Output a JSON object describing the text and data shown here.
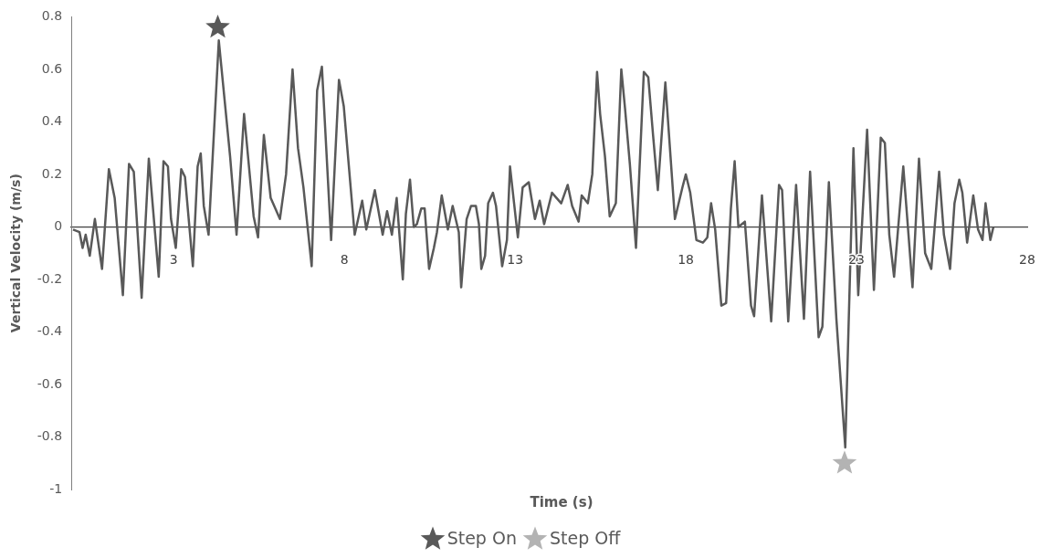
{
  "chart_data": {
    "type": "line",
    "xlabel": "Time (s)",
    "ylabel": "Vertical Velocity (m/s)",
    "xlim": [
      0,
      28
    ],
    "xticks": [
      3,
      8,
      13,
      18,
      23,
      28
    ],
    "ylim": [
      -1,
      0.8
    ],
    "yticks": [
      0.8,
      0.6,
      0.4,
      0.2,
      0,
      -0.2,
      -0.4,
      -0.6,
      -0.8,
      -1
    ],
    "grid": false,
    "legend": "bottom",
    "series": [
      {
        "color": "#595959",
        "x": [
          0.05,
          0.24,
          0.33,
          0.42,
          0.54,
          0.69,
          0.9,
          1.1,
          1.27,
          1.51,
          1.69,
          1.83,
          2.06,
          2.27,
          2.56,
          2.7,
          2.83,
          2.92,
          3.06,
          3.22,
          3.33,
          3.56,
          3.7,
          3.79,
          3.88,
          4.02,
          4.32,
          4.65,
          4.84,
          5.06,
          5.34,
          5.47,
          5.64,
          5.84,
          6.11,
          6.29,
          6.48,
          6.64,
          6.8,
          7.04,
          7.2,
          7.34,
          7.61,
          7.84,
          7.98,
          8.3,
          8.52,
          8.64,
          8.89,
          9.12,
          9.25,
          9.39,
          9.53,
          9.71,
          9.8,
          9.92,
          10.03,
          10.12,
          10.25,
          10.35,
          10.48,
          10.62,
          10.71,
          10.85,
          11.03,
          11.17,
          11.35,
          11.42,
          11.58,
          11.71,
          11.85,
          11.94,
          12.01,
          12.12,
          12.21,
          12.35,
          12.44,
          12.62,
          12.76,
          12.85,
          13.08,
          13.22,
          13.4,
          13.58,
          13.72,
          13.85,
          14.08,
          14.35,
          14.54,
          14.67,
          14.86,
          14.95,
          15.13,
          15.26,
          15.4,
          15.49,
          15.63,
          15.77,
          15.95,
          16.11,
          16.22,
          16.36,
          16.54,
          16.77,
          16.9,
          17.04,
          17.18,
          17.4,
          17.68,
          17.9,
          18,
          18.13,
          18.31,
          18.5,
          18.63,
          18.74,
          18.86,
          19.04,
          19.18,
          19.32,
          19.43,
          19.54,
          19.73,
          19.91,
          20,
          20.23,
          20.5,
          20.73,
          20.82,
          21,
          21.23,
          21.46,
          21.64,
          21.89,
          22,
          22.19,
          22.41,
          22.67,
          22.91,
          23.05,
          23.31,
          23.51,
          23.71,
          23.83,
          23.96,
          24.1,
          24.37,
          24.64,
          24.83,
          25.01,
          25.19,
          25.42,
          25.56,
          25.74,
          25.87,
          26.01,
          26.1,
          26.24,
          26.42,
          26.56,
          26.69,
          26.78,
          26.92,
          27.01
        ],
        "values": [
          -0.01,
          -0.02,
          -0.08,
          -0.03,
          -0.11,
          0.03,
          -0.16,
          0.22,
          0.11,
          -0.26,
          0.24,
          0.21,
          -0.27,
          0.26,
          -0.19,
          0.25,
          0.23,
          0.03,
          -0.08,
          0.22,
          0.19,
          -0.15,
          0.23,
          0.28,
          0.08,
          -0.03,
          0.71,
          0.27,
          -0.03,
          0.43,
          0.04,
          -0.04,
          0.35,
          0.11,
          0.03,
          0.2,
          0.6,
          0.3,
          0.15,
          -0.15,
          0.52,
          0.61,
          -0.05,
          0.56,
          0.46,
          -0.03,
          0.1,
          -0.01,
          0.14,
          -0.03,
          0.06,
          -0.03,
          0.11,
          -0.2,
          0.05,
          0.18,
          0,
          0.01,
          0.07,
          0.07,
          -0.16,
          -0.08,
          -0.02,
          0.12,
          -0.01,
          0.08,
          -0.02,
          -0.23,
          0.03,
          0.08,
          0.08,
          0.01,
          -0.16,
          -0.11,
          0.09,
          0.13,
          0.08,
          -0.15,
          -0.05,
          0.23,
          -0.04,
          0.15,
          0.17,
          0.03,
          0.1,
          0.01,
          0.13,
          0.09,
          0.16,
          0.08,
          0.02,
          0.12,
          0.09,
          0.2,
          0.59,
          0.43,
          0.27,
          0.04,
          0.09,
          0.6,
          0.45,
          0.24,
          -0.08,
          0.59,
          0.57,
          0.35,
          0.14,
          0.55,
          0.03,
          0.15,
          0.2,
          0.13,
          -0.05,
          -0.06,
          -0.04,
          0.09,
          -0.01,
          -0.3,
          -0.29,
          0.07,
          0.25,
          0,
          0.02,
          -0.3,
          -0.34,
          0.12,
          -0.36,
          0.16,
          0.14,
          -0.36,
          0.16,
          -0.35,
          0.21,
          -0.42,
          -0.38,
          0.17,
          -0.35,
          -0.84,
          0.3,
          -0.26,
          0.37,
          -0.24,
          0.34,
          0.32,
          -0.03,
          -0.19,
          0.23,
          -0.23,
          0.26,
          -0.1,
          -0.16,
          0.21,
          -0.03,
          -0.16,
          0.09,
          0.18,
          0.13,
          -0.06,
          0.12,
          -0.01,
          -0.05,
          0.09,
          -0.05,
          0
        ]
      },
      {
        "type": "scatter",
        "name": "Step On",
        "marker": "star",
        "color": "#595959",
        "x": [
          4.29
        ],
        "values": [
          0.76
        ]
      },
      {
        "type": "scatter",
        "name": "Step Off",
        "marker": "star",
        "color": "#b3b3b3",
        "x": [
          22.65
        ],
        "values": [
          -0.9
        ]
      }
    ]
  }
}
